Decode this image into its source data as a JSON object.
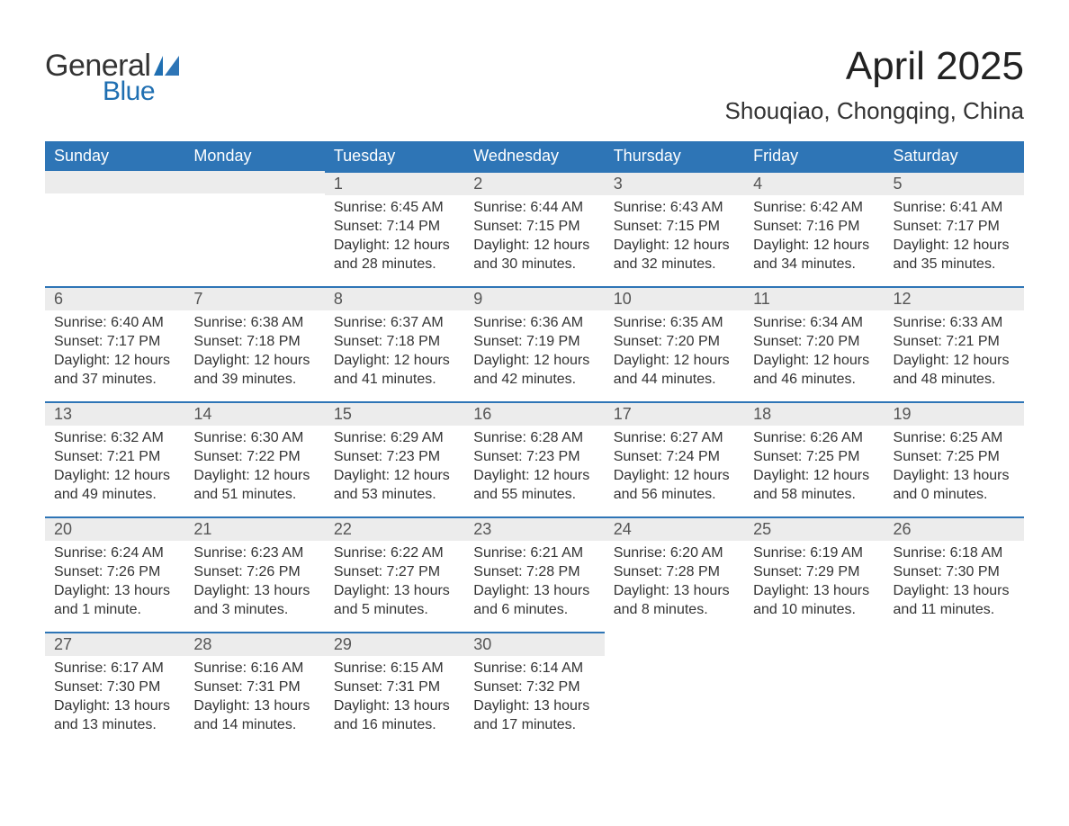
{
  "logo": {
    "word1": "General",
    "word2": "Blue"
  },
  "title": "April 2025",
  "location": "Shouqiao, Chongqing, China",
  "colors": {
    "header_bg": "#2e75b6",
    "header_text": "#ffffff",
    "daynum_bg": "#ececec",
    "border_accent": "#2e75b6",
    "page_bg": "#ffffff",
    "text": "#333333",
    "logo_blue": "#1f6fb2"
  },
  "columns": [
    "Sunday",
    "Monday",
    "Tuesday",
    "Wednesday",
    "Thursday",
    "Friday",
    "Saturday"
  ],
  "weeks": [
    [
      null,
      null,
      {
        "n": "1",
        "sunrise": "6:45 AM",
        "sunset": "7:14 PM",
        "day_h": "12",
        "day_m": "28 minutes"
      },
      {
        "n": "2",
        "sunrise": "6:44 AM",
        "sunset": "7:15 PM",
        "day_h": "12",
        "day_m": "30 minutes"
      },
      {
        "n": "3",
        "sunrise": "6:43 AM",
        "sunset": "7:15 PM",
        "day_h": "12",
        "day_m": "32 minutes"
      },
      {
        "n": "4",
        "sunrise": "6:42 AM",
        "sunset": "7:16 PM",
        "day_h": "12",
        "day_m": "34 minutes"
      },
      {
        "n": "5",
        "sunrise": "6:41 AM",
        "sunset": "7:17 PM",
        "day_h": "12",
        "day_m": "35 minutes"
      }
    ],
    [
      {
        "n": "6",
        "sunrise": "6:40 AM",
        "sunset": "7:17 PM",
        "day_h": "12",
        "day_m": "37 minutes"
      },
      {
        "n": "7",
        "sunrise": "6:38 AM",
        "sunset": "7:18 PM",
        "day_h": "12",
        "day_m": "39 minutes"
      },
      {
        "n": "8",
        "sunrise": "6:37 AM",
        "sunset": "7:18 PM",
        "day_h": "12",
        "day_m": "41 minutes"
      },
      {
        "n": "9",
        "sunrise": "6:36 AM",
        "sunset": "7:19 PM",
        "day_h": "12",
        "day_m": "42 minutes"
      },
      {
        "n": "10",
        "sunrise": "6:35 AM",
        "sunset": "7:20 PM",
        "day_h": "12",
        "day_m": "44 minutes"
      },
      {
        "n": "11",
        "sunrise": "6:34 AM",
        "sunset": "7:20 PM",
        "day_h": "12",
        "day_m": "46 minutes"
      },
      {
        "n": "12",
        "sunrise": "6:33 AM",
        "sunset": "7:21 PM",
        "day_h": "12",
        "day_m": "48 minutes"
      }
    ],
    [
      {
        "n": "13",
        "sunrise": "6:32 AM",
        "sunset": "7:21 PM",
        "day_h": "12",
        "day_m": "49 minutes"
      },
      {
        "n": "14",
        "sunrise": "6:30 AM",
        "sunset": "7:22 PM",
        "day_h": "12",
        "day_m": "51 minutes"
      },
      {
        "n": "15",
        "sunrise": "6:29 AM",
        "sunset": "7:23 PM",
        "day_h": "12",
        "day_m": "53 minutes"
      },
      {
        "n": "16",
        "sunrise": "6:28 AM",
        "sunset": "7:23 PM",
        "day_h": "12",
        "day_m": "55 minutes"
      },
      {
        "n": "17",
        "sunrise": "6:27 AM",
        "sunset": "7:24 PM",
        "day_h": "12",
        "day_m": "56 minutes"
      },
      {
        "n": "18",
        "sunrise": "6:26 AM",
        "sunset": "7:25 PM",
        "day_h": "12",
        "day_m": "58 minutes"
      },
      {
        "n": "19",
        "sunrise": "6:25 AM",
        "sunset": "7:25 PM",
        "day_h": "13",
        "day_m": "0 minutes"
      }
    ],
    [
      {
        "n": "20",
        "sunrise": "6:24 AM",
        "sunset": "7:26 PM",
        "day_h": "13",
        "day_m": "1 minute"
      },
      {
        "n": "21",
        "sunrise": "6:23 AM",
        "sunset": "7:26 PM",
        "day_h": "13",
        "day_m": "3 minutes"
      },
      {
        "n": "22",
        "sunrise": "6:22 AM",
        "sunset": "7:27 PM",
        "day_h": "13",
        "day_m": "5 minutes"
      },
      {
        "n": "23",
        "sunrise": "6:21 AM",
        "sunset": "7:28 PM",
        "day_h": "13",
        "day_m": "6 minutes"
      },
      {
        "n": "24",
        "sunrise": "6:20 AM",
        "sunset": "7:28 PM",
        "day_h": "13",
        "day_m": "8 minutes"
      },
      {
        "n": "25",
        "sunrise": "6:19 AM",
        "sunset": "7:29 PM",
        "day_h": "13",
        "day_m": "10 minutes"
      },
      {
        "n": "26",
        "sunrise": "6:18 AM",
        "sunset": "7:30 PM",
        "day_h": "13",
        "day_m": "11 minutes"
      }
    ],
    [
      {
        "n": "27",
        "sunrise": "6:17 AM",
        "sunset": "7:30 PM",
        "day_h": "13",
        "day_m": "13 minutes"
      },
      {
        "n": "28",
        "sunrise": "6:16 AM",
        "sunset": "7:31 PM",
        "day_h": "13",
        "day_m": "14 minutes"
      },
      {
        "n": "29",
        "sunrise": "6:15 AM",
        "sunset": "7:31 PM",
        "day_h": "13",
        "day_m": "16 minutes"
      },
      {
        "n": "30",
        "sunrise": "6:14 AM",
        "sunset": "7:32 PM",
        "day_h": "13",
        "day_m": "17 minutes"
      },
      null,
      null,
      null
    ]
  ],
  "labels": {
    "sunrise": "Sunrise:",
    "sunset": "Sunset:",
    "daylight": "Daylight:",
    "hours": "hours",
    "and": "and"
  },
  "typography": {
    "title_fontsize": 44,
    "location_fontsize": 26,
    "header_fontsize": 18,
    "daynum_fontsize": 18,
    "body_fontsize": 16,
    "font_family": "Arial"
  }
}
